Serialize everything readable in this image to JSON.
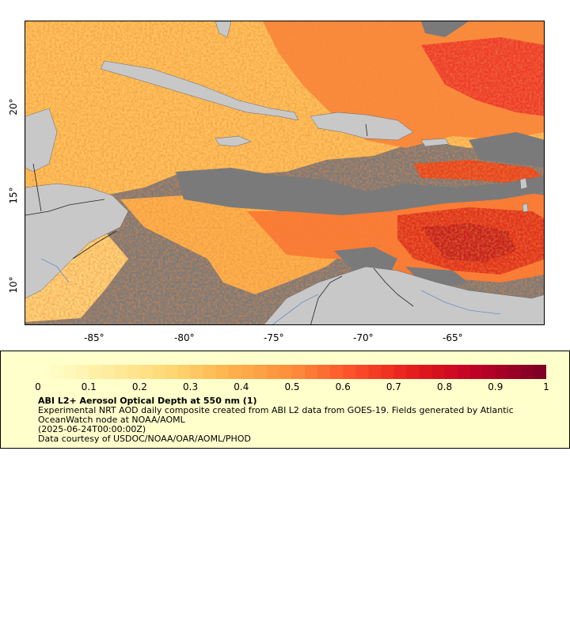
{
  "map": {
    "lon_ticks": [
      "-85°",
      "-80°",
      "-75°",
      "-70°",
      "-65°"
    ],
    "lat_ticks": [
      "20°",
      "15°",
      "10°"
    ],
    "colors": {
      "missing": "#7a7a7a",
      "land": "#c8c8c8",
      "border": "#222222",
      "river": "#6b8fc9"
    }
  },
  "legend": {
    "ticks": [
      "0",
      "0.1",
      "0.2",
      "0.3",
      "0.4",
      "0.5",
      "0.6",
      "0.7",
      "0.8",
      "0.9",
      "1"
    ],
    "title": "ABI L2+ Aerosol Optical Depth at 550 nm (1)",
    "line1": "Experimental NRT AOD daily composite created from ABI L2 data from GOES-19. Fields generated by Atlantic",
    "line2": "OceanWatch node at NOAA/AOML",
    "line3": "(2025-06-24T00:00:00Z)",
    "line4": "Data courtesy of USDOC/NOAA/OAR/AOML/PHOD",
    "colormap": [
      "#ffffcc",
      "#ffeda0",
      "#fed976",
      "#feb24c",
      "#fd8d3c",
      "#fc4e2a",
      "#e31a1c",
      "#bd0026",
      "#800026"
    ]
  }
}
